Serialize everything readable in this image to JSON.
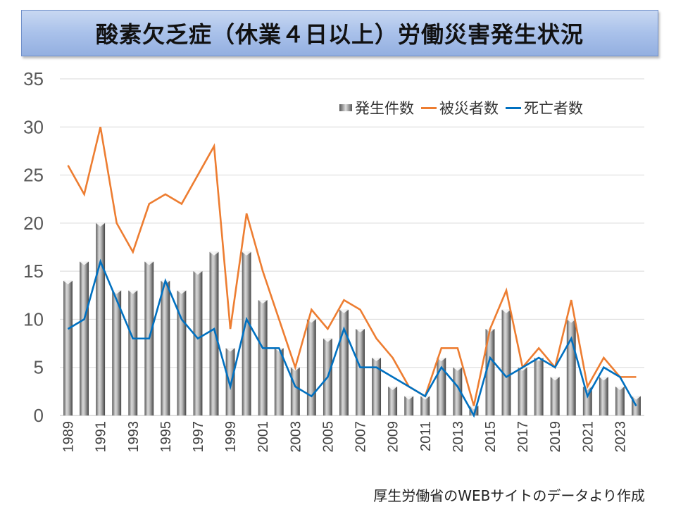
{
  "title": "酸素欠乏症（休業４日以上）労働災害発生状況",
  "footnote": "厚生労働省のWEBサイトのデータより作成",
  "chart_data": {
    "type": "bar+line",
    "title": "酸素欠乏症（休業４日以上）労働災害発生状況",
    "categories": [
      "1989",
      "1990",
      "1991",
      "1992",
      "1993",
      "1994",
      "1995",
      "1996",
      "1997",
      "1998",
      "1999",
      "2000",
      "2001",
      "2002",
      "2003",
      "2004",
      "2005",
      "2006",
      "2007",
      "2008",
      "2009",
      "2010",
      "2011",
      "2012",
      "2013",
      "2014",
      "2015",
      "2016",
      "2017",
      "2018",
      "2019",
      "2020",
      "2021",
      "2022",
      "2023",
      "2024"
    ],
    "x_tick_labels": [
      "1989",
      "1991",
      "1993",
      "1995",
      "1997",
      "1999",
      "2001",
      "2003",
      "2005",
      "2007",
      "2009",
      "2011",
      "2013",
      "2015",
      "2017",
      "2019",
      "2021",
      "2023"
    ],
    "y_ticks": [
      "0",
      "5",
      "10",
      "15",
      "20",
      "25",
      "30",
      "35"
    ],
    "ylim": [
      0,
      35
    ],
    "grid": true,
    "legend_position": "top-right",
    "series": [
      {
        "name": "発生件数",
        "type": "bar",
        "color": "#9a9a9a",
        "values": [
          14,
          16,
          20,
          13,
          13,
          16,
          14,
          13,
          15,
          17,
          7,
          17,
          12,
          7,
          5,
          10,
          8,
          11,
          9,
          6,
          3,
          2,
          2,
          6,
          5,
          1,
          9,
          11,
          5,
          6,
          4,
          10,
          3,
          4,
          3,
          2
        ]
      },
      {
        "name": "被災者数",
        "type": "line",
        "color": "#ed7d31",
        "values": [
          26,
          23,
          30,
          20,
          17,
          22,
          23,
          22,
          25,
          28,
          9,
          21,
          15,
          10,
          5,
          11,
          9,
          12,
          11,
          8,
          6,
          3,
          2,
          7,
          7,
          1,
          9,
          13,
          5,
          7,
          5,
          12,
          3,
          6,
          4,
          4
        ]
      },
      {
        "name": "死亡者数",
        "type": "line",
        "color": "#0070c0",
        "values": [
          9,
          10,
          16,
          12,
          8,
          8,
          14,
          10,
          8,
          9,
          3,
          10,
          7,
          7,
          3,
          2,
          4,
          9,
          5,
          5,
          4,
          3,
          2,
          5,
          3,
          0,
          6,
          4,
          5,
          6,
          5,
          8,
          2,
          5,
          4,
          1
        ]
      }
    ]
  }
}
